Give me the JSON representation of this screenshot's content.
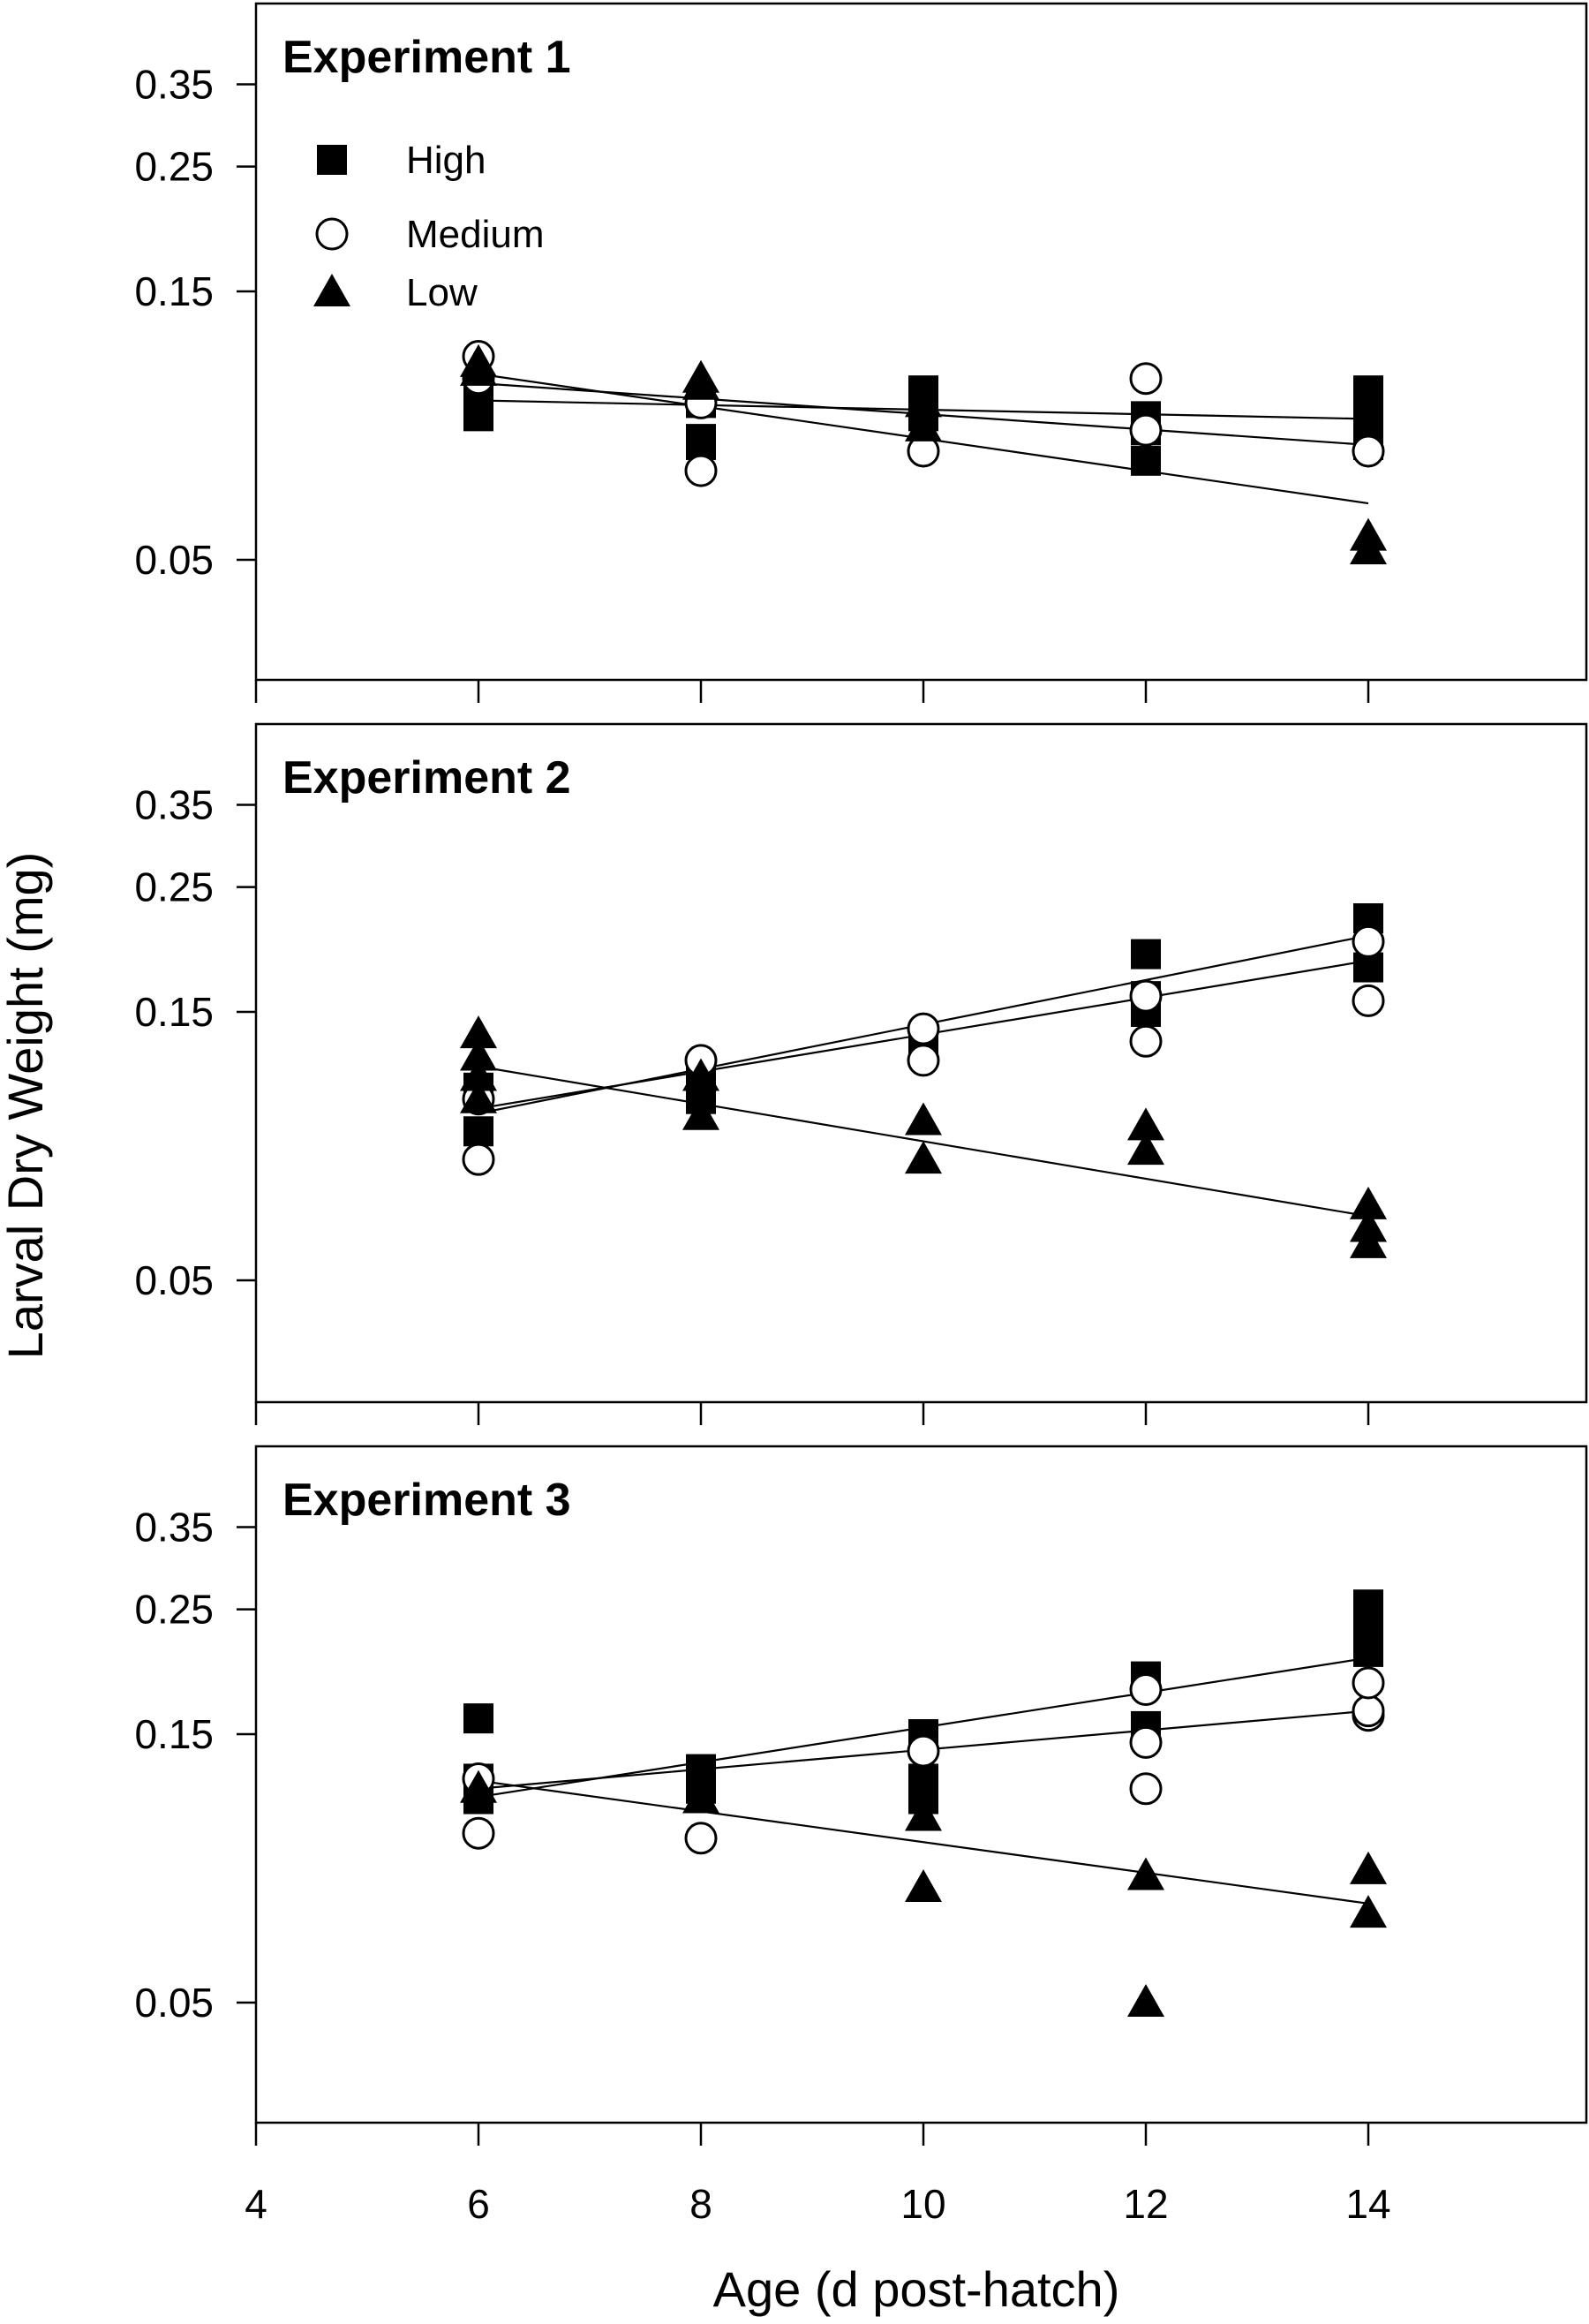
{
  "chart_data": {
    "type": "scatter",
    "ylabel": "Larval Dry Weight (mg)",
    "xlabel": "Age (d post-hatch)",
    "x_ticks": [
      4,
      6,
      8,
      10,
      12,
      14
    ],
    "x_tick_labels": [
      "4",
      "6",
      "8",
      "10",
      "12",
      "14"
    ],
    "xlim": [
      4,
      16
    ],
    "y_scale": "log",
    "ylim": [
      0.03,
      0.5
    ],
    "y_ticks": [
      0.05,
      0.15,
      0.25,
      0.35
    ],
    "y_tick_labels": [
      "0.05",
      "0.15",
      "0.25",
      "0.35"
    ],
    "legend": {
      "location": "top-left of first panel",
      "entries": [
        {
          "label": "High",
          "marker": "filled-square"
        },
        {
          "label": "Medium",
          "marker": "open-circle"
        },
        {
          "label": "Low",
          "marker": "filled-triangle"
        }
      ]
    },
    "panels": [
      {
        "title": "Experiment 1",
        "series": [
          {
            "name": "High",
            "marker": "filled-square",
            "points": [
              [
                6,
                0.09
              ],
              [
                6,
                0.095
              ],
              [
                6,
                0.1
              ],
              [
                8,
                0.08
              ],
              [
                8,
                0.082
              ],
              [
                8,
                0.095
              ],
              [
                10,
                0.09
              ],
              [
                10,
                0.095
              ],
              [
                10,
                0.1
              ],
              [
                12,
                0.075
              ],
              [
                12,
                0.085
              ],
              [
                12,
                0.09
              ],
              [
                14,
                0.08
              ],
              [
                14,
                0.09
              ],
              [
                14,
                0.1
              ]
            ],
            "fit": [
              [
                6,
                0.096
              ],
              [
                14,
                0.089
              ]
            ]
          },
          {
            "name": "Medium",
            "marker": "open-circle",
            "points": [
              [
                6,
                0.115
              ],
              [
                6,
                0.105
              ],
              [
                8,
                0.072
              ],
              [
                8,
                0.095
              ],
              [
                10,
                0.078
              ],
              [
                12,
                0.105
              ],
              [
                12,
                0.085
              ],
              [
                14,
                0.078
              ]
            ],
            "fit": [
              [
                6,
                0.103
              ],
              [
                14,
                0.08
              ]
            ]
          },
          {
            "name": "Low",
            "marker": "filled-triangle",
            "points": [
              [
                6,
                0.108
              ],
              [
                6,
                0.112
              ],
              [
                8,
                0.102
              ],
              [
                8,
                0.105
              ],
              [
                10,
                0.086
              ],
              [
                10,
                0.095
              ],
              [
                14,
                0.052
              ],
              [
                14,
                0.055
              ]
            ],
            "fit": [
              [
                6,
                0.107
              ],
              [
                14,
                0.063
              ]
            ]
          }
        ]
      },
      {
        "title": "Experiment 2",
        "series": [
          {
            "name": "High",
            "marker": "filled-square",
            "points": [
              [
                6,
                0.092
              ],
              [
                6,
                0.11
              ],
              [
                8,
                0.105
              ],
              [
                8,
                0.11
              ],
              [
                8,
                0.118
              ],
              [
                10,
                0.128
              ],
              [
                10,
                0.135
              ],
              [
                12,
                0.15
              ],
              [
                12,
                0.16
              ],
              [
                12,
                0.19
              ],
              [
                14,
                0.18
              ],
              [
                14,
                0.22
              ]
            ],
            "fit": [
              [
                6,
                0.101
              ],
              [
                14,
                0.185
              ]
            ]
          },
          {
            "name": "Medium",
            "marker": "open-circle",
            "points": [
              [
                6,
                0.082
              ],
              [
                6,
                0.105
              ],
              [
                8,
                0.123
              ],
              [
                10,
                0.123
              ],
              [
                10,
                0.14
              ],
              [
                12,
                0.133
              ],
              [
                12,
                0.16
              ],
              [
                14,
                0.157
              ],
              [
                14,
                0.2
              ]
            ],
            "fit": [
              [
                6,
                0.099
              ],
              [
                14,
                0.205
              ]
            ]
          },
          {
            "name": "Low",
            "marker": "filled-triangle",
            "points": [
              [
                6,
                0.105
              ],
              [
                6,
                0.115
              ],
              [
                6,
                0.125
              ],
              [
                6,
                0.137
              ],
              [
                8,
                0.098
              ],
              [
                8,
                0.115
              ],
              [
                10,
                0.082
              ],
              [
                10,
                0.096
              ],
              [
                12,
                0.085
              ],
              [
                12,
                0.094
              ],
              [
                14,
                0.058
              ],
              [
                14,
                0.062
              ],
              [
                14,
                0.068
              ]
            ],
            "fit": [
              [
                6,
                0.12
              ],
              [
                14,
                0.065
              ]
            ]
          }
        ]
      },
      {
        "title": "Experiment 3",
        "series": [
          {
            "name": "High",
            "marker": "filled-square",
            "points": [
              [
                6,
                0.115
              ],
              [
                6,
                0.12
              ],
              [
                6,
                0.125
              ],
              [
                6,
                0.16
              ],
              [
                8,
                0.12
              ],
              [
                8,
                0.125
              ],
              [
                8,
                0.13
              ],
              [
                10,
                0.115
              ],
              [
                10,
                0.12
              ],
              [
                10,
                0.125
              ],
              [
                10,
                0.15
              ],
              [
                12,
                0.155
              ],
              [
                12,
                0.19
              ],
              [
                14,
                0.21
              ],
              [
                14,
                0.225
              ],
              [
                14,
                0.24
              ],
              [
                14,
                0.255
              ]
            ],
            "fit": [
              [
                6,
                0.116
              ],
              [
                14,
                0.205
              ]
            ]
          },
          {
            "name": "Medium",
            "marker": "open-circle",
            "points": [
              [
                6,
                0.1
              ],
              [
                6,
                0.125
              ],
              [
                8,
                0.098
              ],
              [
                10,
                0.14
              ],
              [
                12,
                0.12
              ],
              [
                12,
                0.145
              ],
              [
                12,
                0.18
              ],
              [
                14,
                0.162
              ],
              [
                14,
                0.165
              ],
              [
                14,
                0.185
              ]
            ],
            "fit": [
              [
                6,
                0.12
              ],
              [
                14,
                0.165
              ]
            ]
          },
          {
            "name": "Low",
            "marker": "filled-triangle",
            "points": [
              [
                6,
                0.12
              ],
              [
                8,
                0.115
              ],
              [
                10,
                0.08
              ],
              [
                10,
                0.107
              ],
              [
                12,
                0.05
              ],
              [
                12,
                0.084
              ],
              [
                14,
                0.072
              ],
              [
                14,
                0.086
              ]
            ],
            "fit": [
              [
                6,
                0.124
              ],
              [
                14,
                0.075
              ]
            ]
          }
        ]
      }
    ]
  }
}
